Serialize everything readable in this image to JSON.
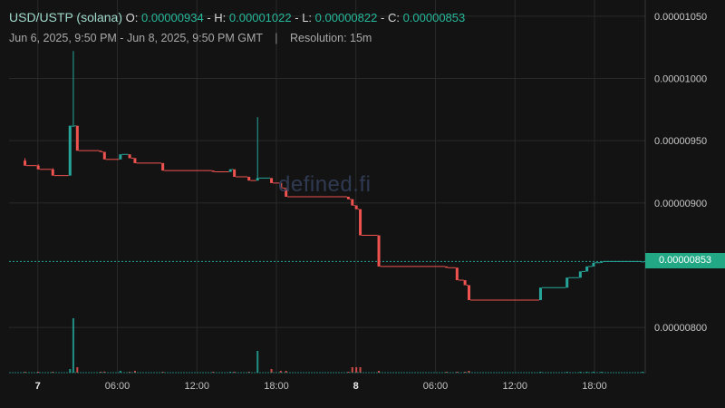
{
  "header": {
    "pair": "USD/USTP (solana)",
    "o_label": "O:",
    "o_value": "0.00000934",
    "h_label": "H:",
    "h_value": "0.00001022",
    "l_label": "L:",
    "l_value": "0.00000822",
    "c_label": "C:",
    "c_value": "0.00000853",
    "date_range": "Jun 6, 2025, 9:50 PM - Jun 8, 2025, 9:50 PM GMT",
    "separator": "|",
    "resolution": "Resolution: 15m"
  },
  "watermark": "defined.fi",
  "current_price_label": "0.00000853",
  "colors": {
    "up": "#26a69a",
    "down": "#ef5350",
    "grid": "#2a2a2a",
    "background": "#131313"
  },
  "chart_data": {
    "type": "candlestick",
    "title": "USD/USTP (solana)",
    "y_ticks": [
      "0.00001050",
      "0.00001000",
      "0.00000950",
      "0.00000900",
      "0.00000800"
    ],
    "y_tick_values": [
      1.05e-05,
      1e-05,
      9.5e-06,
      9e-06,
      8e-06
    ],
    "ylim": [
      7.63e-06,
      1.063e-05
    ],
    "x_ticks": [
      {
        "label": "7",
        "hour": 2.17,
        "bold": true
      },
      {
        "label": "06:00",
        "hour": 8.17,
        "bold": false
      },
      {
        "label": "12:00",
        "hour": 14.17,
        "bold": false
      },
      {
        "label": "18:00",
        "hour": 20.17,
        "bold": false
      },
      {
        "label": "8",
        "hour": 26.17,
        "bold": true
      },
      {
        "label": "06:00",
        "hour": 32.17,
        "bold": false
      },
      {
        "label": "12:00",
        "hour": 38.17,
        "bold": false
      },
      {
        "label": "18:00",
        "hour": 44.17,
        "bold": false
      }
    ],
    "xlim_hours": [
      0,
      48
    ],
    "current_price": 8.53e-06,
    "candles": [
      {
        "t": 1.2,
        "o": 9.34e-06,
        "h": 9.36e-06,
        "l": 9.3e-06,
        "c": 9.3e-06,
        "v": 0.5
      },
      {
        "t": 2.2,
        "o": 9.3e-06,
        "h": 9.31e-06,
        "l": 9.27e-06,
        "c": 9.27e-06,
        "v": 0.5
      },
      {
        "t": 3.3,
        "o": 9.27e-06,
        "h": 9.28e-06,
        "l": 9.22e-06,
        "c": 9.22e-06,
        "v": 0.5
      },
      {
        "t": 4.6,
        "o": 9.22e-06,
        "h": 9.62e-06,
        "l": 9.22e-06,
        "c": 9.62e-06,
        "v": 2
      },
      {
        "t": 4.85,
        "o": 9.62e-06,
        "h": 1.022e-05,
        "l": 9.62e-06,
        "c": 9.62e-06,
        "v": 30
      },
      {
        "t": 5.15,
        "o": 9.62e-06,
        "h": 9.62e-06,
        "l": 9.42e-06,
        "c": 9.42e-06,
        "v": 3
      },
      {
        "t": 6.9,
        "o": 9.42e-06,
        "h": 9.42e-06,
        "l": 9.41e-06,
        "c": 9.41e-06,
        "v": 0.4
      },
      {
        "t": 7.2,
        "o": 9.41e-06,
        "h": 9.41e-06,
        "l": 9.35e-06,
        "c": 9.35e-06,
        "v": 0.6
      },
      {
        "t": 8.4,
        "o": 9.35e-06,
        "h": 9.39e-06,
        "l": 9.35e-06,
        "c": 9.39e-06,
        "v": 1
      },
      {
        "t": 9.1,
        "o": 9.39e-06,
        "h": 9.39e-06,
        "l": 9.36e-06,
        "c": 9.36e-06,
        "v": 0.5
      },
      {
        "t": 9.5,
        "o": 9.36e-06,
        "h": 9.36e-06,
        "l": 9.32e-06,
        "c": 9.32e-06,
        "v": 1
      },
      {
        "t": 11.6,
        "o": 9.32e-06,
        "h": 9.32e-06,
        "l": 9.26e-06,
        "c": 9.26e-06,
        "v": 0.5
      },
      {
        "t": 15.4,
        "o": 9.26e-06,
        "h": 9.26e-06,
        "l": 9.25e-06,
        "c": 9.25e-06,
        "v": 0.3
      },
      {
        "t": 16.7,
        "o": 9.25e-06,
        "h": 9.27e-06,
        "l": 9.25e-06,
        "c": 9.27e-06,
        "v": 0.3
      },
      {
        "t": 17.0,
        "o": 9.27e-06,
        "h": 9.27e-06,
        "l": 9.21e-06,
        "c": 9.21e-06,
        "v": 0.5
      },
      {
        "t": 18.1,
        "o": 9.21e-06,
        "h": 9.21e-06,
        "l": 9.18e-06,
        "c": 9.18e-06,
        "v": 0.5
      },
      {
        "t": 18.75,
        "o": 9.18e-06,
        "h": 9.69e-06,
        "l": 9.18e-06,
        "c": 9.2e-06,
        "v": 12
      },
      {
        "t": 19.8,
        "o": 9.2e-06,
        "h": 9.2e-06,
        "l": 9.16e-06,
        "c": 9.16e-06,
        "v": 2
      },
      {
        "t": 20.5,
        "o": 9.16e-06,
        "h": 9.16e-06,
        "l": 9.12e-06,
        "c": 9.12e-06,
        "v": 1
      },
      {
        "t": 20.9,
        "o": 9.12e-06,
        "h": 9.12e-06,
        "l": 9.05e-06,
        "c": 9.05e-06,
        "v": 1
      },
      {
        "t": 25.6,
        "o": 9.05e-06,
        "h": 9.05e-06,
        "l": 9.03e-06,
        "c": 9.03e-06,
        "v": 0.5
      },
      {
        "t": 25.9,
        "o": 9.03e-06,
        "h": 9.03e-06,
        "l": 8.98e-06,
        "c": 8.98e-06,
        "v": 3
      },
      {
        "t": 26.2,
        "o": 8.98e-06,
        "h": 8.98e-06,
        "l": 8.95e-06,
        "c": 8.95e-06,
        "v": 3
      },
      {
        "t": 26.5,
        "o": 8.95e-06,
        "h": 8.95e-06,
        "l": 8.74e-06,
        "c": 8.74e-06,
        "v": 3
      },
      {
        "t": 27.9,
        "o": 8.74e-06,
        "h": 8.74e-06,
        "l": 8.49e-06,
        "c": 8.49e-06,
        "v": 1
      },
      {
        "t": 33.0,
        "o": 8.49e-06,
        "h": 8.49e-06,
        "l": 8.48e-06,
        "c": 8.48e-06,
        "v": 0.3
      },
      {
        "t": 33.8,
        "o": 8.48e-06,
        "h": 8.48e-06,
        "l": 8.38e-06,
        "c": 8.38e-06,
        "v": 0.5
      },
      {
        "t": 34.4,
        "o": 8.38e-06,
        "h": 8.38e-06,
        "l": 8.34e-06,
        "c": 8.34e-06,
        "v": 0.5
      },
      {
        "t": 34.7,
        "o": 8.34e-06,
        "h": 8.34e-06,
        "l": 8.22e-06,
        "c": 8.22e-06,
        "v": 1
      },
      {
        "t": 40.1,
        "o": 8.22e-06,
        "h": 8.32e-06,
        "l": 8.22e-06,
        "c": 8.32e-06,
        "v": 0.5
      },
      {
        "t": 42.1,
        "o": 8.32e-06,
        "h": 8.4e-06,
        "l": 8.32e-06,
        "c": 8.4e-06,
        "v": 0.5
      },
      {
        "t": 43.1,
        "o": 8.4e-06,
        "h": 8.45e-06,
        "l": 8.4e-06,
        "c": 8.45e-06,
        "v": 0.5
      },
      {
        "t": 43.6,
        "o": 8.45e-06,
        "h": 8.49e-06,
        "l": 8.45e-06,
        "c": 8.49e-06,
        "v": 0.5
      },
      {
        "t": 44.1,
        "o": 8.49e-06,
        "h": 8.52e-06,
        "l": 8.49e-06,
        "c": 8.52e-06,
        "v": 0.5
      },
      {
        "t": 44.7,
        "o": 8.52e-06,
        "h": 8.53e-06,
        "l": 8.52e-06,
        "c": 8.53e-06,
        "v": 0.3
      },
      {
        "t": 47.8,
        "o": 8.53e-06,
        "h": 8.53e-06,
        "l": 8.53e-06,
        "c": 8.53e-06,
        "v": 0.2
      }
    ]
  }
}
